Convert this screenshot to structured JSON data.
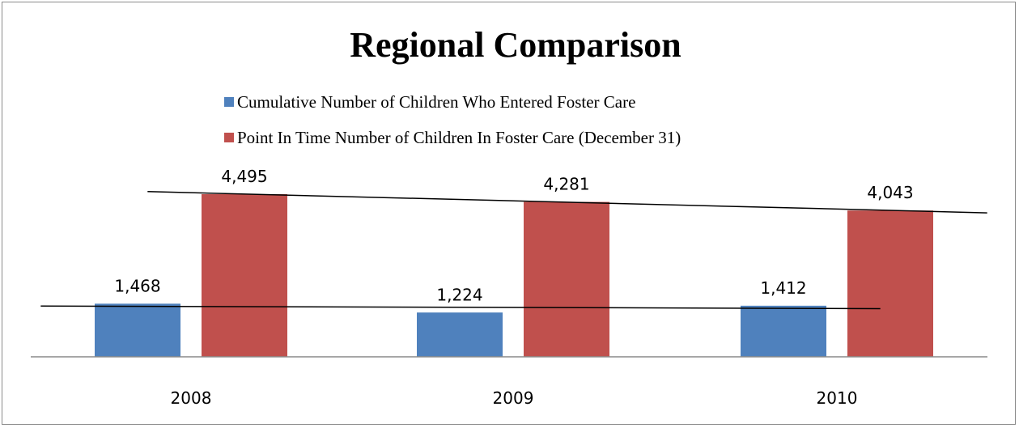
{
  "chart_data": {
    "type": "bar",
    "title": "Regional Comparison",
    "categories": [
      "2008",
      "2009",
      "2010"
    ],
    "series": [
      {
        "name": "Cumulative Number of Children Who Entered Foster Care",
        "values": [
          1468,
          1224,
          1412
        ],
        "labels": [
          "1,468",
          "1,224",
          "1,412"
        ],
        "color": "#4f81bd"
      },
      {
        "name": "Point In Time Number of Children In Foster Care (December 31)",
        "values": [
          4495,
          4281,
          4043
        ],
        "labels": [
          "4,495",
          "4,281",
          "4,043"
        ],
        "color": "#c0504d"
      }
    ],
    "trendlines": true,
    "trendline_color": "#000000",
    "legend_position": "top",
    "grid": false,
    "ylim": [
      0,
      4600
    ]
  }
}
